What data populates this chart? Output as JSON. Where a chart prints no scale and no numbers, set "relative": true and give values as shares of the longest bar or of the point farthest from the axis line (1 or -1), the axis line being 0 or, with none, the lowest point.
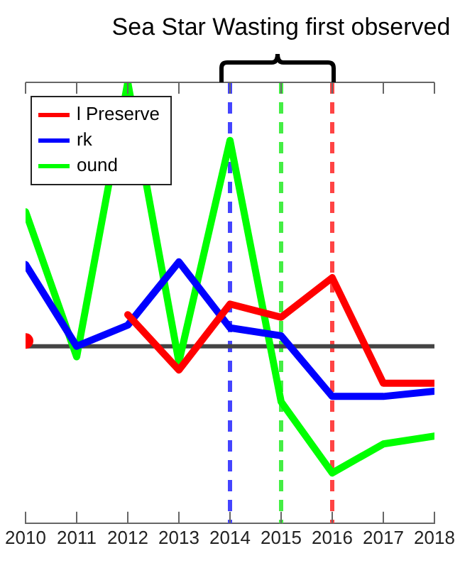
{
  "chart_data": {
    "type": "line",
    "relative": true,
    "x": [
      2010,
      2011,
      2012,
      2013,
      2014,
      2015,
      2016,
      2017,
      2018
    ],
    "xlim": [
      2010,
      2018
    ],
    "xticks": [
      2010,
      2011,
      2012,
      2013,
      2014,
      2015,
      2016,
      2017,
      2018
    ],
    "series": [
      {
        "name": "l Preserve",
        "color": "#ff0000",
        "values": [
          0.02,
          null,
          0.12,
          -0.09,
          0.16,
          0.11,
          0.26,
          -0.14,
          -0.14
        ]
      },
      {
        "name": "rk",
        "color": "#0000ff",
        "values": [
          0.31,
          0,
          0.08,
          0.32,
          0.07,
          0.04,
          -0.19,
          -0.19,
          -0.17
        ]
      },
      {
        "name": "ound",
        "color": "#00ff00",
        "values": [
          0.51,
          -0.04,
          1,
          -0.06,
          0.78,
          -0.21,
          -0.48,
          -0.37,
          -0.34
        ]
      }
    ],
    "ref_lines": [
      {
        "axis": "x",
        "value": 2014,
        "color": "#4444ff",
        "line_style": "dashed"
      },
      {
        "axis": "x",
        "value": 2015,
        "color": "#44ee44",
        "line_style": "dashed"
      },
      {
        "axis": "x",
        "value": 2016,
        "color": "#ff4444",
        "line_style": "dashed"
      }
    ],
    "annotations": [
      "Sea Star Wasting first observed"
    ],
    "legend": "top left",
    "grid": false,
    "marker": "none",
    "line_style": "solid"
  }
}
